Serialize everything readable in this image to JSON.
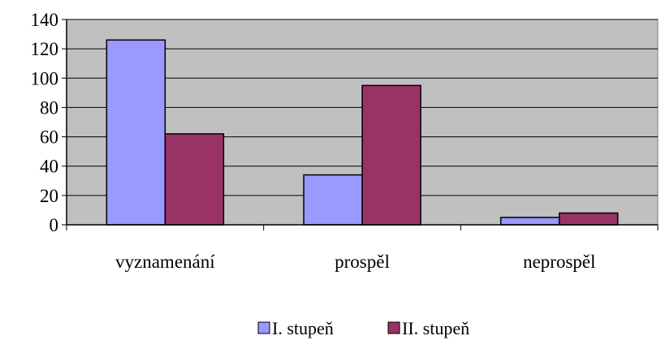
{
  "chart_data": {
    "type": "bar",
    "categories": [
      "vyznamenání",
      "prospěl",
      "neprospěl"
    ],
    "series": [
      {
        "name": "I. stupeň",
        "color": "#9999ff",
        "values": [
          126,
          34,
          5
        ]
      },
      {
        "name": "II. stupeň",
        "color": "#993366",
        "values": [
          62,
          95,
          8
        ]
      }
    ],
    "ylim": [
      0,
      140
    ],
    "yticks": [
      0,
      20,
      40,
      60,
      80,
      100,
      120,
      140
    ],
    "grid": true,
    "plot_background": "#c0c0c0",
    "legend_position": "bottom"
  }
}
